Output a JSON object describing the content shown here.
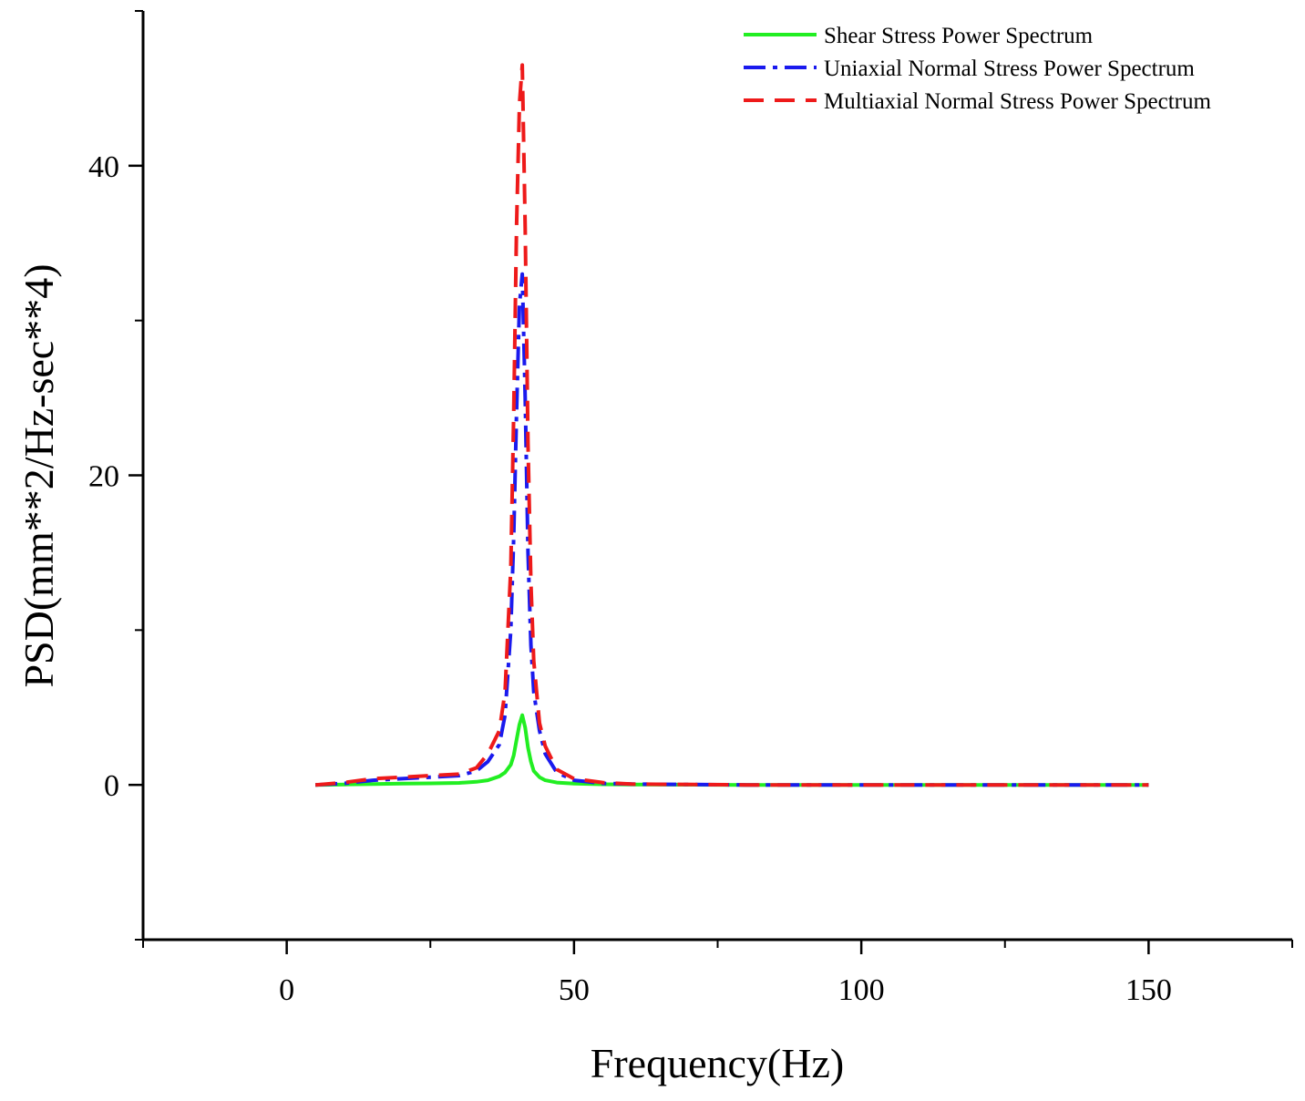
{
  "chart_data": {
    "type": "line",
    "title": "",
    "xlabel": "Frequency(Hz)",
    "ylabel": "PSD(mm**2/Hz-sec**4)",
    "xlim": [
      -25,
      175
    ],
    "ylim": [
      -10,
      50
    ],
    "xticks": [
      0,
      50,
      100,
      150
    ],
    "xticks_minor": [
      -25,
      25,
      75,
      125,
      175
    ],
    "yticks": [
      0,
      20,
      40
    ],
    "yticks_minor": [
      -10,
      10,
      30,
      50
    ],
    "grid": false,
    "legend_position": "top-right",
    "series": [
      {
        "name": "Shear Stress Power Spectrum",
        "color": "#22ee22",
        "style": "solid",
        "x": [
          5,
          10,
          15,
          20,
          25,
          30,
          33,
          35,
          37,
          38,
          39,
          39.5,
          40,
          40.5,
          41,
          41.5,
          42,
          42.5,
          43,
          44,
          45,
          47,
          50,
          55,
          60,
          80,
          100,
          120,
          150
        ],
        "y": [
          0,
          0.03,
          0.05,
          0.08,
          0.1,
          0.13,
          0.2,
          0.3,
          0.55,
          0.8,
          1.3,
          1.9,
          2.9,
          3.9,
          4.5,
          3.7,
          2.4,
          1.5,
          0.9,
          0.5,
          0.3,
          0.15,
          0.08,
          0.04,
          0.02,
          0,
          0,
          0,
          0
        ]
      },
      {
        "name": "Uniaxial Normal Stress Power Spectrum",
        "color": "#1a1aee",
        "style": "dashdot",
        "x": [
          5,
          10,
          15,
          20,
          25,
          30,
          33,
          35,
          37,
          38,
          39,
          39.5,
          40,
          40.5,
          41,
          41.5,
          42,
          42.5,
          43,
          44,
          45,
          47,
          50,
          55,
          60,
          80,
          100,
          120,
          150
        ],
        "y": [
          0,
          0.1,
          0.3,
          0.4,
          0.5,
          0.6,
          0.9,
          1.5,
          2.6,
          4.5,
          10,
          16,
          24,
          31,
          33,
          25,
          15,
          9,
          6,
          3.5,
          2,
          0.8,
          0.3,
          0.1,
          0.05,
          0,
          0,
          0,
          0
        ]
      },
      {
        "name": "Multiaxial Normal Stress Power Spectrum",
        "color": "#ee1a1a",
        "style": "dashed",
        "x": [
          5,
          10,
          15,
          20,
          25,
          30,
          33,
          35,
          37,
          38,
          39,
          39.5,
          40,
          40.5,
          41,
          41.5,
          42,
          42.5,
          43,
          44,
          45,
          47,
          50,
          55,
          60,
          80,
          100,
          120,
          150
        ],
        "y": [
          0,
          0.15,
          0.4,
          0.5,
          0.6,
          0.7,
          1.1,
          2,
          3.5,
          6,
          14,
          24,
          36,
          44,
          46.5,
          36,
          22,
          13,
          8,
          4,
          2.5,
          1,
          0.4,
          0.15,
          0.05,
          0,
          0,
          0,
          0
        ]
      }
    ]
  }
}
